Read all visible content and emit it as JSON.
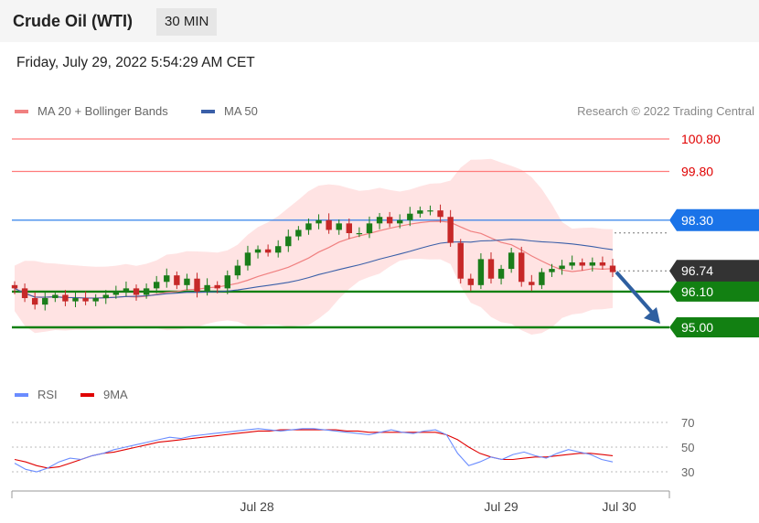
{
  "header": {
    "title": "Crude Oil (WTI)",
    "timeframe": "30 MIN"
  },
  "date": "Friday, July 29, 2022 5:54:29 AM CET",
  "legend": {
    "ma20": "MA 20 + Bollinger Bands",
    "ma50": "MA 50",
    "research": "Research © 2022 Trading Central"
  },
  "rsi_legend": {
    "rsi": "RSI",
    "ma9": "9MA"
  },
  "colors": {
    "up": "#1a7d1a",
    "down": "#c62828",
    "ma20": "#f08080",
    "ma50": "#3a5fa8",
    "band": "#ffd9d9",
    "support": "#128012",
    "resistance": "#ff7b7b",
    "pivot": "#1a73e8",
    "rsi": "#6a8cff",
    "rsi_ma": "#e00000",
    "arrow": "#2e5fa0"
  },
  "chart_data": [
    {
      "type": "candlestick",
      "title": "Crude Oil (WTI)",
      "x_labels": [
        "Jul 28",
        "Jul 29",
        "Jul 30"
      ],
      "ylim": [
        94.0,
        101.5
      ],
      "series": [
        {
          "name": "MA 20 + Bollinger Bands"
        },
        {
          "name": "MA 50"
        }
      ],
      "close_series": [
        96.2,
        95.9,
        95.7,
        95.9,
        96.0,
        95.8,
        95.9,
        95.8,
        95.9,
        96.0,
        96.1,
        96.2,
        96.0,
        96.2,
        96.4,
        96.6,
        96.3,
        96.5,
        96.1,
        96.3,
        96.2,
        96.6,
        96.9,
        97.3,
        97.4,
        97.3,
        97.5,
        97.8,
        98.0,
        98.2,
        98.3,
        98.0,
        98.2,
        97.9,
        97.9,
        98.2,
        98.4,
        98.2,
        98.3,
        98.5,
        98.6,
        98.6,
        98.4,
        97.6,
        96.5,
        96.3,
        97.1,
        96.5,
        96.8,
        97.3,
        96.4,
        96.3,
        96.7,
        96.8,
        96.9,
        97.0,
        96.9,
        97.0,
        96.9,
        96.7
      ],
      "levels": [
        {
          "label": "100.80",
          "value": 100.8,
          "kind": "resistance"
        },
        {
          "label": "99.80",
          "value": 99.8,
          "kind": "resistance"
        },
        {
          "label": "98.30",
          "value": 98.3,
          "kind": "pivot"
        },
        {
          "label": "96.74",
          "value": 96.74,
          "kind": "last"
        },
        {
          "label": "96.10",
          "value": 96.1,
          "kind": "support"
        },
        {
          "label": "95.00",
          "value": 95.0,
          "kind": "support"
        }
      ]
    },
    {
      "type": "line",
      "title": "RSI",
      "series": [
        {
          "name": "RSI",
          "values": [
            37,
            32,
            30,
            33,
            38,
            41,
            40,
            43,
            45,
            48,
            50,
            52,
            54,
            56,
            58,
            57,
            59,
            60,
            61,
            62,
            63,
            64,
            65,
            64,
            63,
            64,
            65,
            65,
            64,
            63,
            62,
            61,
            60,
            62,
            64,
            62,
            61,
            63,
            64,
            60,
            45,
            35,
            38,
            42,
            40,
            44,
            46,
            43,
            41,
            45,
            48,
            46,
            44,
            40,
            38
          ]
        },
        {
          "name": "9MA",
          "values": [
            40,
            38,
            35,
            33,
            34,
            37,
            40,
            43,
            45,
            46,
            48,
            50,
            52,
            54,
            55,
            56,
            57,
            58,
            59,
            60,
            61,
            62,
            63,
            63,
            64,
            64,
            64,
            64,
            64,
            64,
            63,
            63,
            62,
            62,
            62,
            62,
            62,
            62,
            62,
            60,
            56,
            50,
            45,
            42,
            40,
            40,
            41,
            42,
            42,
            43,
            44,
            45,
            45,
            44,
            43
          ]
        }
      ],
      "yticks": [
        "70",
        "50",
        "30"
      ]
    }
  ]
}
